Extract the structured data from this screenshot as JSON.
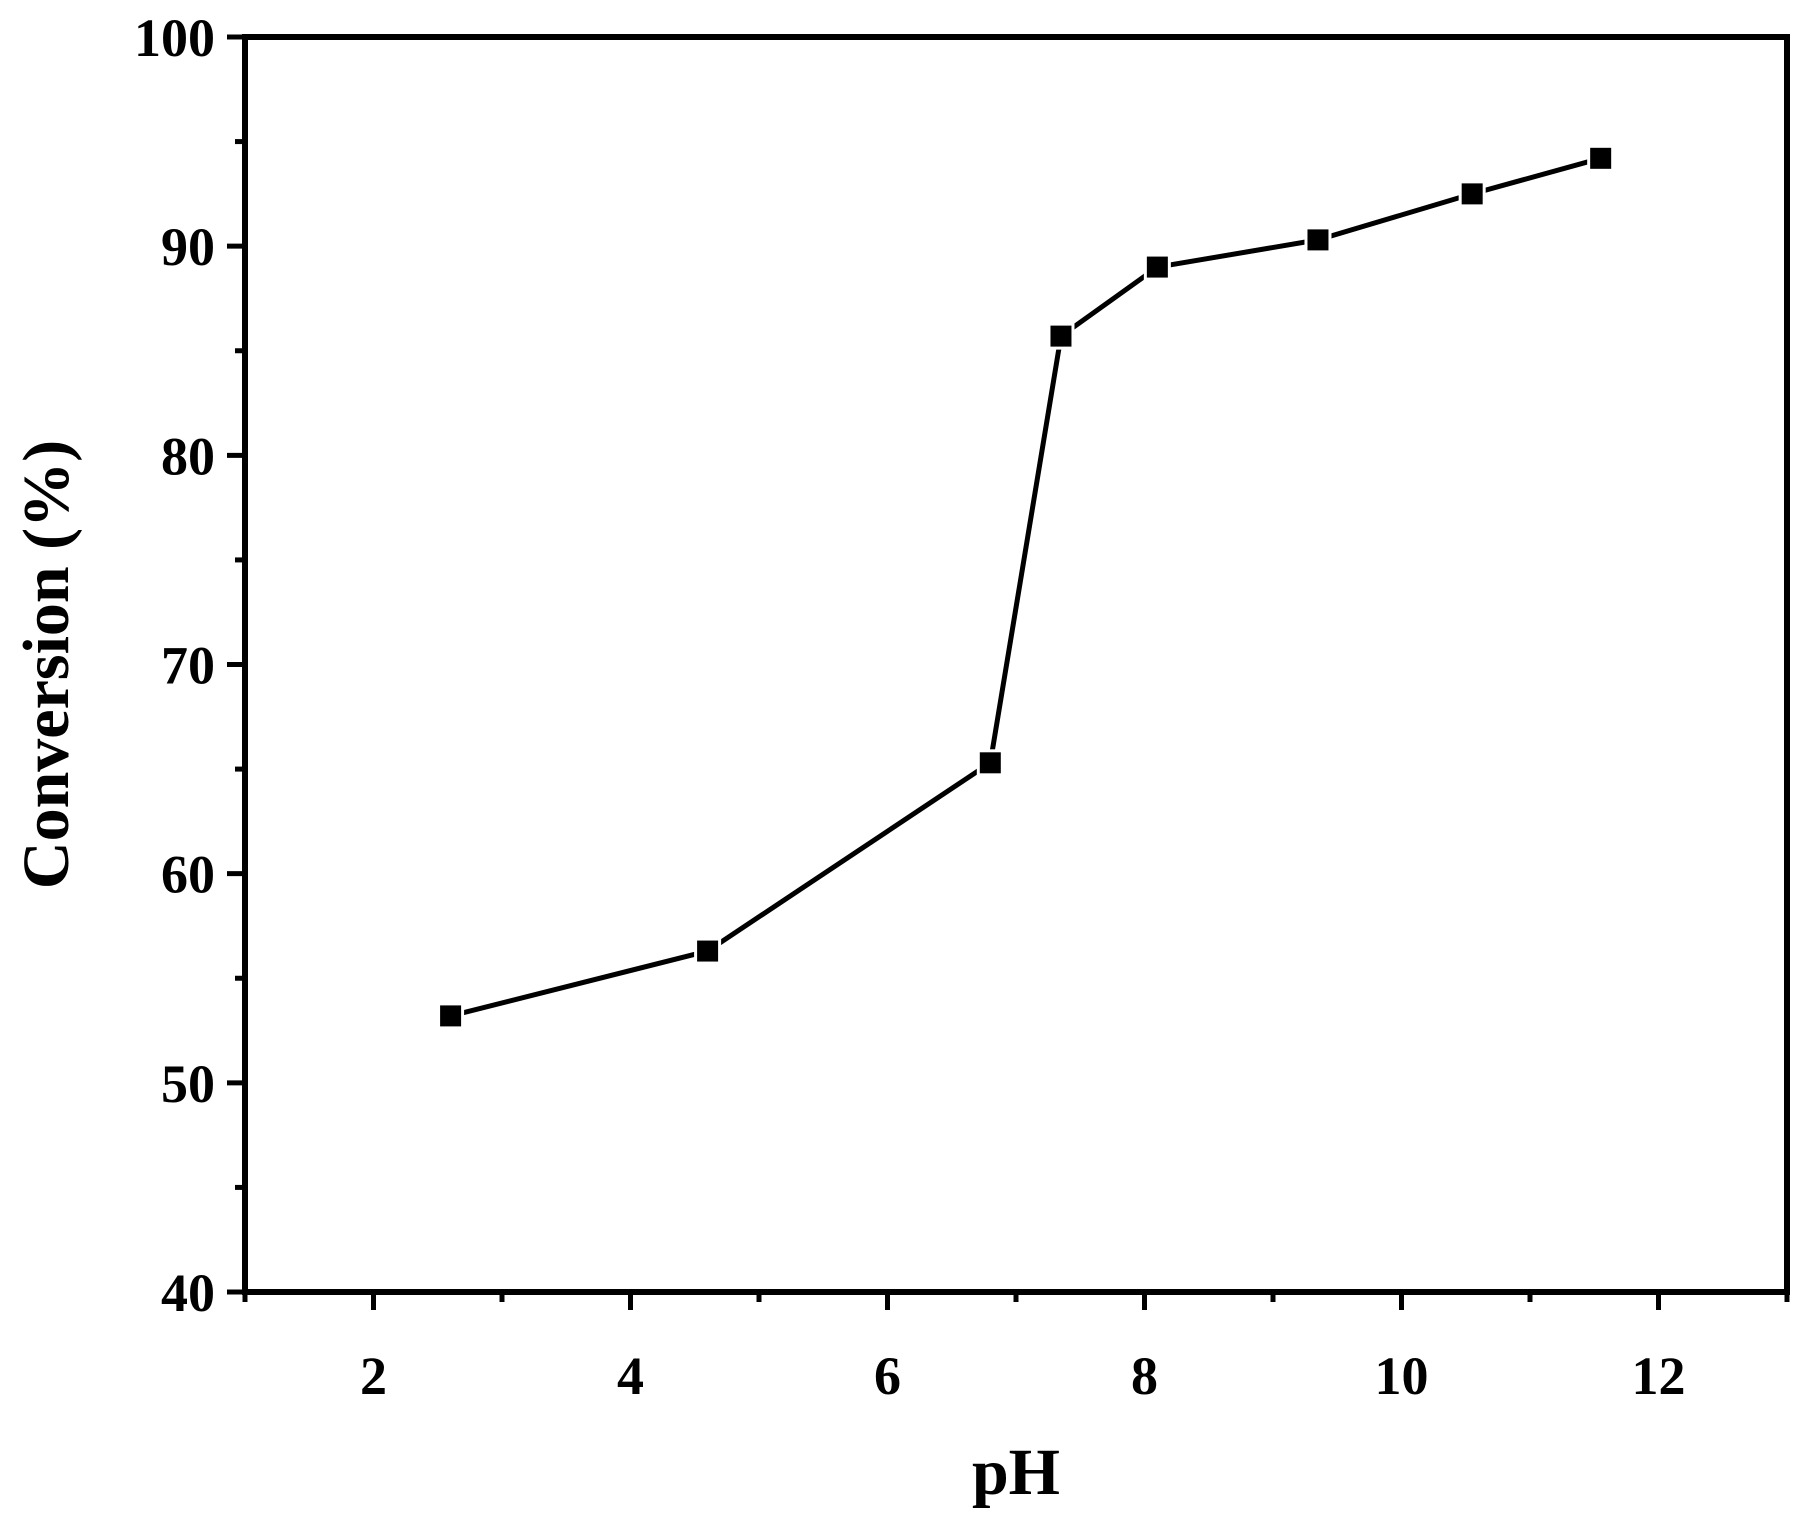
{
  "chart_data": {
    "type": "line",
    "title": "",
    "xlabel": "pH",
    "ylabel": "Conversion (%)",
    "xlim": [
      1,
      13
    ],
    "ylim": [
      40,
      100
    ],
    "x_ticks": [
      2,
      4,
      6,
      8,
      10,
      12
    ],
    "x_tick_labels": [
      "2",
      "4",
      "6",
      "8",
      "10",
      "12"
    ],
    "y_ticks": [
      40,
      50,
      60,
      70,
      80,
      90,
      100
    ],
    "y_tick_labels": [
      "40",
      "50",
      "60",
      "70",
      "80",
      "90",
      "100"
    ],
    "grid": false,
    "legend": "none",
    "marker": "square",
    "series": [
      {
        "x": [
          2.6,
          4.6,
          6.8,
          7.35,
          8.1,
          9.35,
          10.55,
          11.55
        ],
        "y": [
          53.2,
          56.3,
          65.3,
          85.7,
          89.0,
          90.3,
          92.5,
          94.2
        ],
        "color": "#000000"
      }
    ]
  }
}
